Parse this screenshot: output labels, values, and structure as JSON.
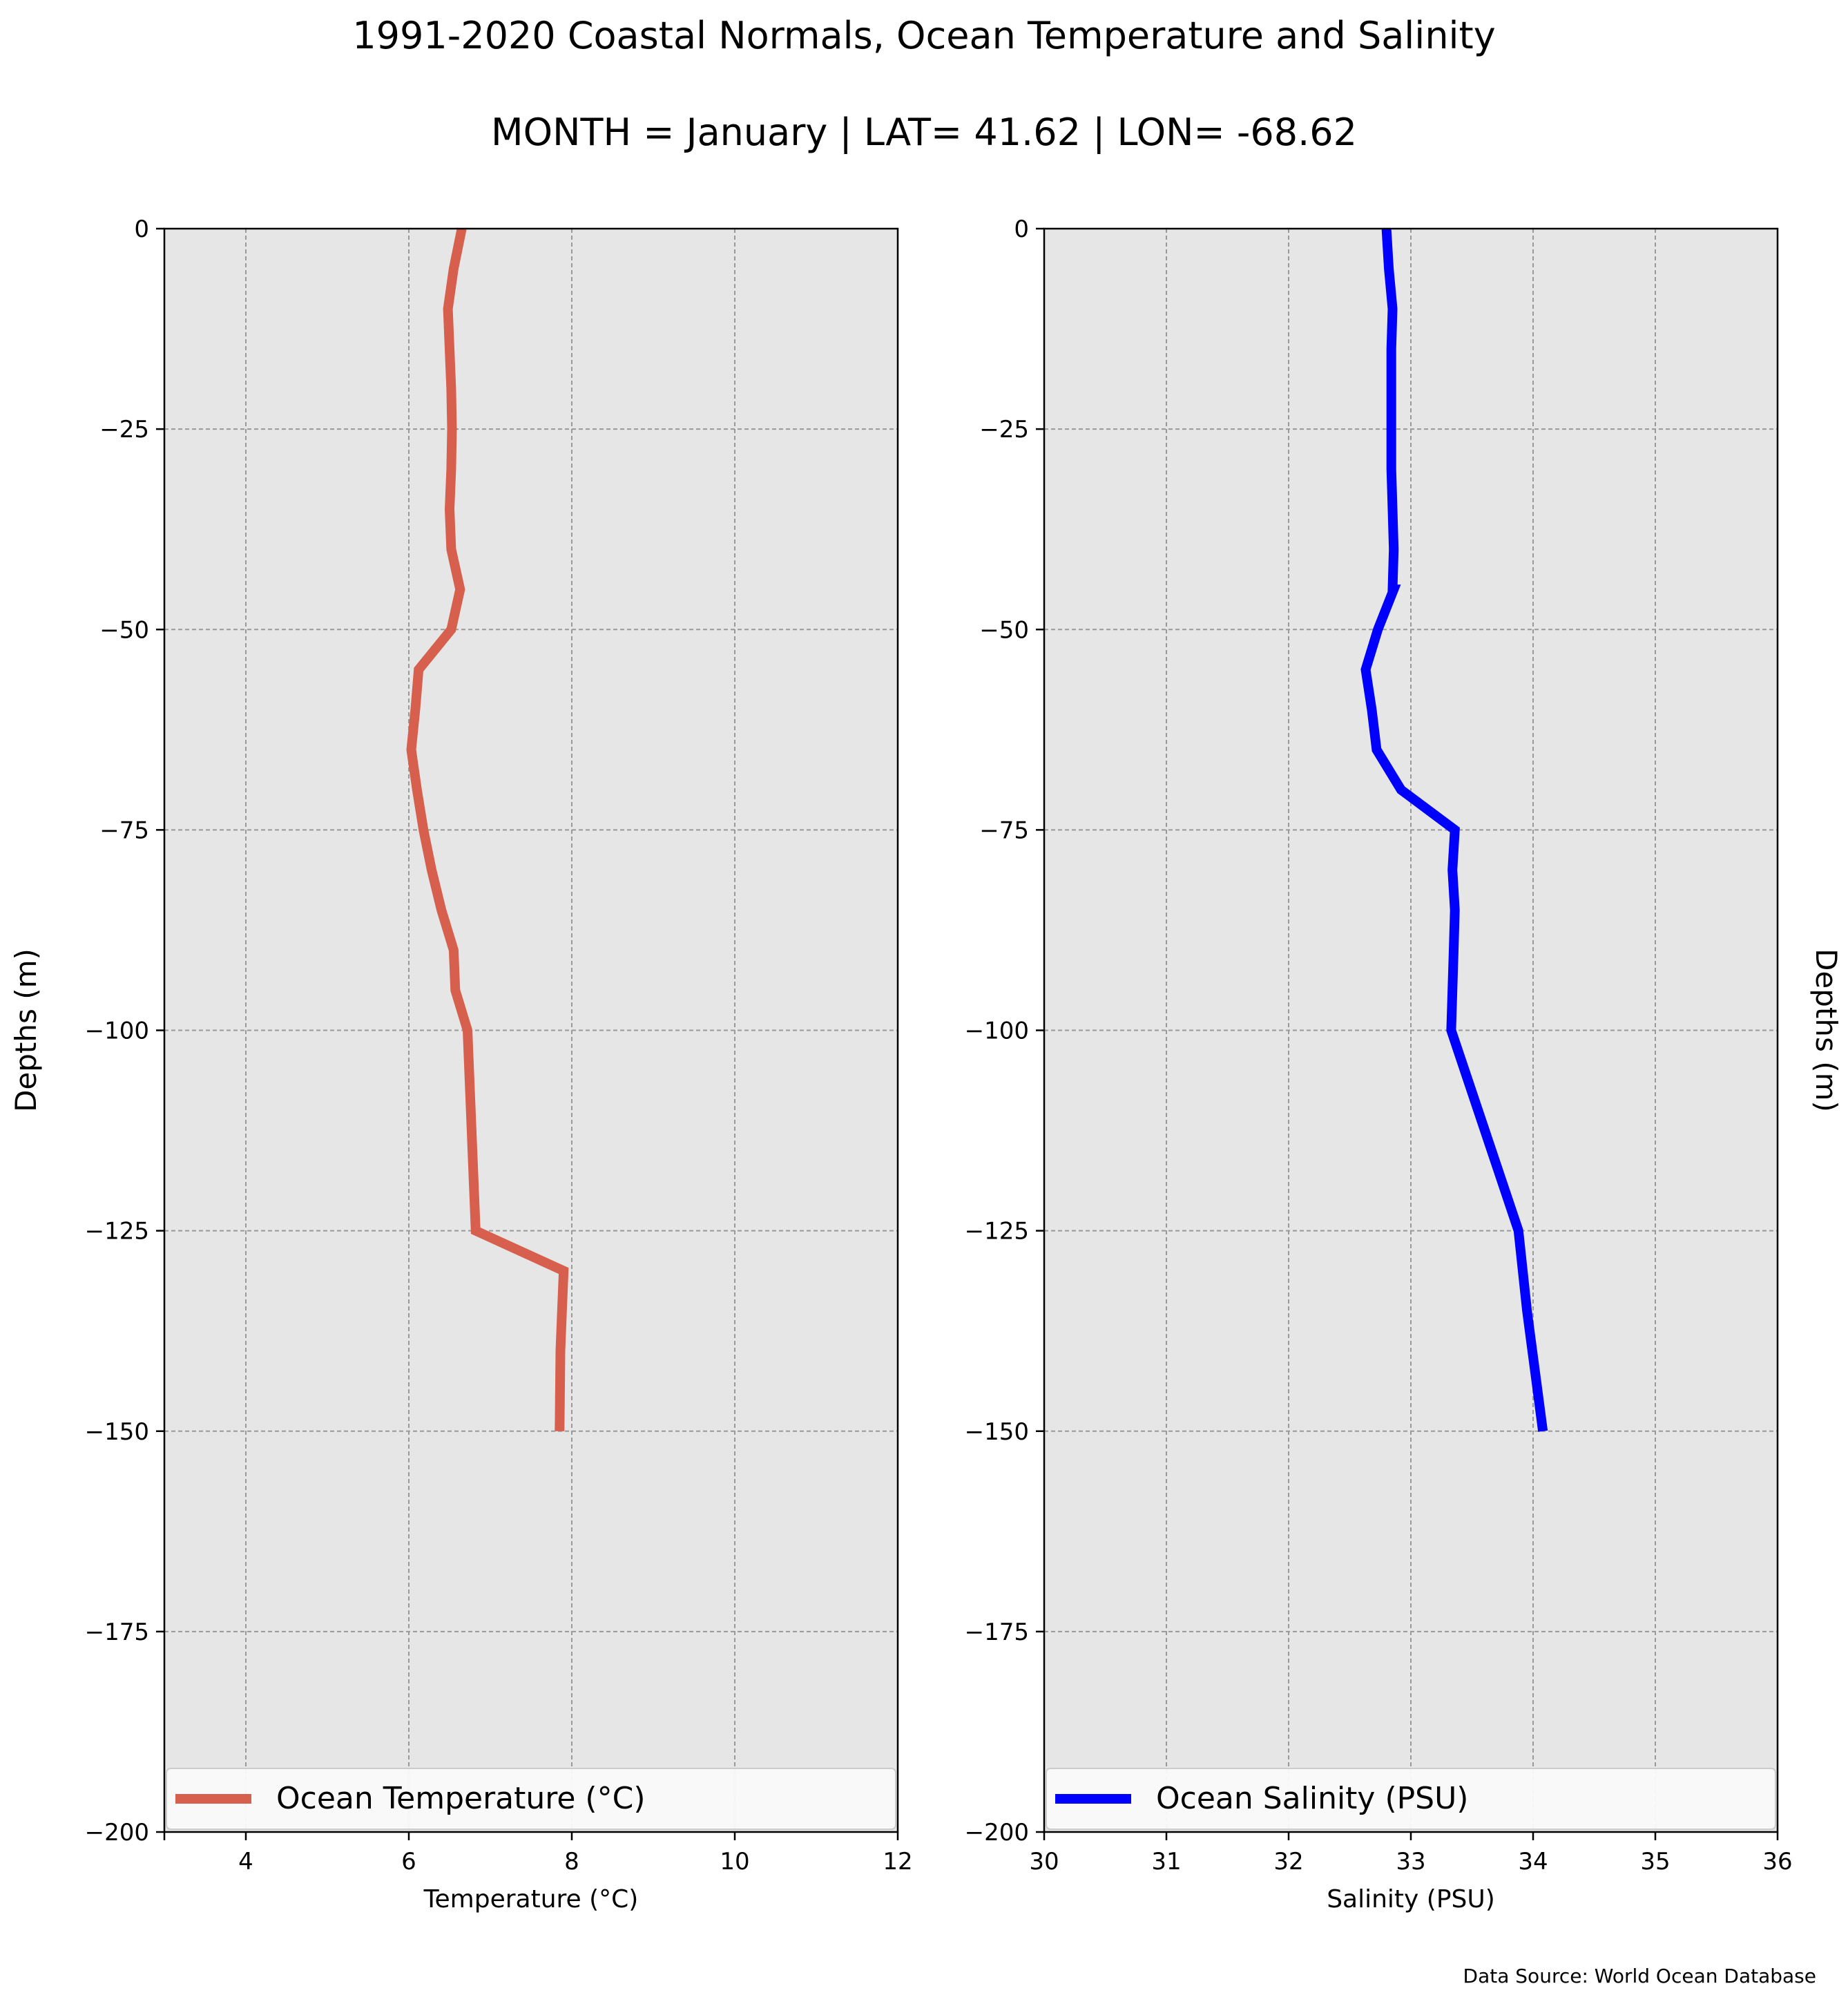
{
  "title": "1991-2020 Coastal Normals, Ocean Temperature and Salinity",
  "subtitle": "MONTH = January | LAT= 41.62 | LON= -68.62",
  "source": "Data Source: World Ocean Database",
  "colors": {
    "background": "#e6e6e6",
    "grid": "#999999",
    "temperature": "#d6604d",
    "salinity": "#0000ff"
  },
  "chart_data": [
    {
      "type": "line",
      "xlabel": "Temperature ($^\\circ$C)",
      "xlabel_display": "Temperature (°C)",
      "ylabel": "Depths (m)",
      "xlim": [
        3,
        12
      ],
      "ylim": [
        -200,
        0
      ],
      "xticks": [
        4,
        6,
        8,
        10,
        12
      ],
      "yticks": [
        0,
        -25,
        -50,
        -75,
        -100,
        -125,
        -150,
        -175,
        -200
      ],
      "grid": true,
      "legend_position": "bottom",
      "series": [
        {
          "name": "Ocean Temperature (°C)",
          "color": "#d6604d",
          "x": [
            6.65,
            6.55,
            6.48,
            6.5,
            6.52,
            6.53,
            6.52,
            6.5,
            6.52,
            6.63,
            6.52,
            6.12,
            6.08,
            6.03,
            6.1,
            6.18,
            6.28,
            6.4,
            6.55,
            6.57,
            6.72,
            6.82,
            7.9,
            7.88,
            7.86,
            7.85
          ],
          "y": [
            0,
            -5,
            -10,
            -15,
            -20,
            -25,
            -30,
            -35,
            -40,
            -45,
            -50,
            -55,
            -60,
            -65,
            -70,
            -75,
            -80,
            -85,
            -90,
            -95,
            -100,
            -125,
            -130,
            -135,
            -140,
            -150
          ]
        }
      ]
    },
    {
      "type": "line",
      "xlabel": "Salinity (PSU)",
      "ylabel": "Depths (m)",
      "xlim": [
        30,
        36
      ],
      "ylim": [
        -200,
        0
      ],
      "xticks": [
        30,
        31,
        32,
        33,
        34,
        35,
        36
      ],
      "yticks": [
        0,
        -25,
        -50,
        -75,
        -100,
        -125,
        -150,
        -175,
        -200
      ],
      "grid": true,
      "legend_position": "bottom",
      "series": [
        {
          "name": "Ocean Salinity (PSU)",
          "color": "#0000ff",
          "x": [
            32.8,
            32.82,
            32.85,
            32.84,
            32.84,
            32.84,
            32.84,
            32.85,
            32.86,
            32.85,
            32.86,
            32.73,
            32.63,
            32.68,
            32.72,
            32.92,
            33.36,
            33.34,
            33.36,
            33.35,
            33.34,
            33.33,
            33.88,
            33.95,
            34.02,
            34.08
          ],
          "y": [
            0,
            -5,
            -10,
            -15,
            -20,
            -25,
            -30,
            -35,
            -40,
            -45,
            -45,
            -50,
            -55,
            -60,
            -65,
            -70,
            -75,
            -80,
            -85,
            -90,
            -95,
            -100,
            -125,
            -135,
            -143,
            -150
          ]
        }
      ]
    }
  ]
}
